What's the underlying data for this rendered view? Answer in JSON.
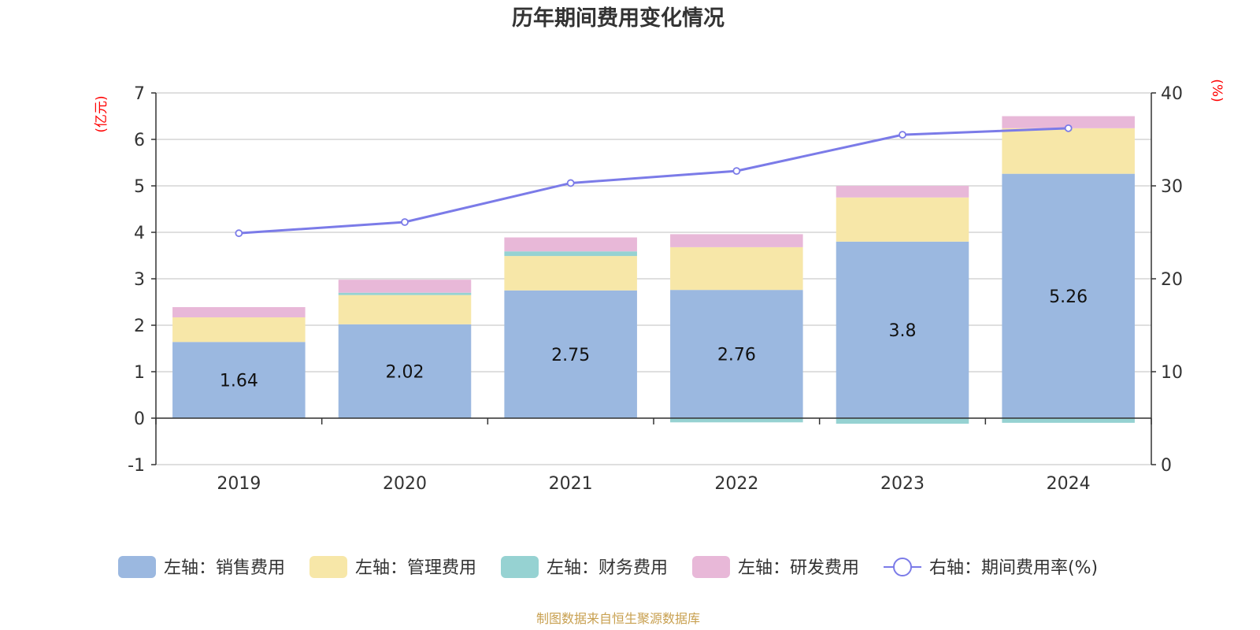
{
  "chart_data": {
    "type": "bar",
    "title": "历年期间费用变化情况",
    "left_unit": "(亿元)",
    "right_unit": "(%)",
    "categories": [
      "2019",
      "2020",
      "2021",
      "2022",
      "2023",
      "2024"
    ],
    "left_axis": {
      "min": -1,
      "max": 7,
      "ticks": [
        "7",
        "6",
        "5",
        "4",
        "3",
        "2",
        "1",
        "0",
        "-1"
      ]
    },
    "right_axis": {
      "min": 0,
      "max": 40,
      "ticks": [
        "40",
        "30",
        "20",
        "10",
        "0"
      ]
    },
    "grid": true,
    "legend_position": "bottom",
    "series": [
      {
        "name": "左轴：销售费用",
        "color": "#9bb8e0",
        "values": [
          1.64,
          2.02,
          2.75,
          2.76,
          3.8,
          5.26
        ],
        "labels": [
          "1.64",
          "2.02",
          "2.75",
          "2.76",
          "3.8",
          "5.26"
        ]
      },
      {
        "name": "左轴：管理费用",
        "color": "#f7e7a8",
        "values": [
          0.53,
          0.63,
          0.74,
          0.92,
          0.95,
          0.98
        ]
      },
      {
        "name": "左轴：财务费用",
        "color": "#96d2d2",
        "values": [
          0.0,
          0.05,
          0.1,
          -0.09,
          -0.12,
          -0.1
        ]
      },
      {
        "name": "左轴：研发费用",
        "color": "#e8b8d8",
        "values": [
          0.22,
          0.28,
          0.3,
          0.28,
          0.25,
          0.26
        ]
      }
    ],
    "line_series": {
      "name": "右轴：期间费用率(%)",
      "color": "#7b7be8",
      "values": [
        24.9,
        26.1,
        30.3,
        31.6,
        35.5,
        36.2
      ]
    },
    "source": "制图数据来自恒生聚源数据库"
  }
}
